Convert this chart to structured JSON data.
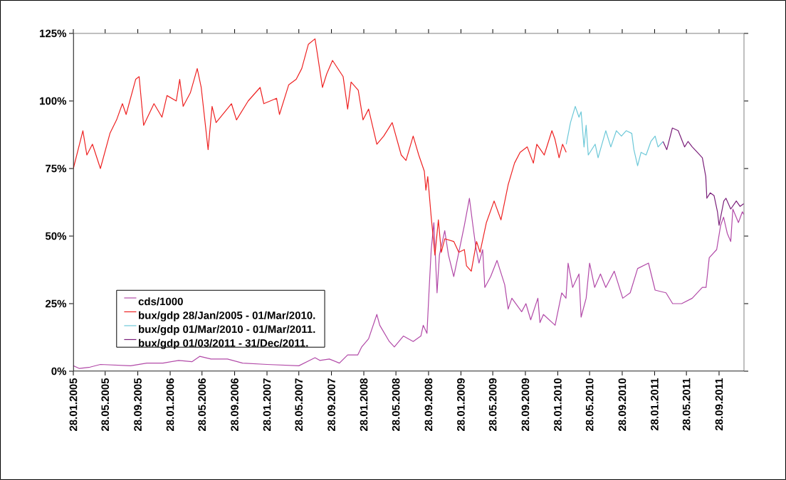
{
  "chart_data": {
    "type": "line",
    "xlim": [
      "2005-01-28",
      "2011-12-31"
    ],
    "ylim": [
      0,
      125
    ],
    "xticks": [
      {
        "value": "2005-01-28",
        "label": "28.01.2005"
      },
      {
        "value": "2005-05-28",
        "label": "28.05.2005"
      },
      {
        "value": "2005-09-28",
        "label": "28.09.2005"
      },
      {
        "value": "2006-01-28",
        "label": "28.01.2006"
      },
      {
        "value": "2006-05-28",
        "label": "28.05.2006"
      },
      {
        "value": "2006-09-28",
        "label": "28.09.2006"
      },
      {
        "value": "2007-01-28",
        "label": "28.01.2007"
      },
      {
        "value": "2007-05-28",
        "label": "28.05.2007"
      },
      {
        "value": "2007-09-28",
        "label": "28.09.2007"
      },
      {
        "value": "2008-01-28",
        "label": "28.01.2008"
      },
      {
        "value": "2008-05-28",
        "label": "28.05.2008"
      },
      {
        "value": "2008-09-28",
        "label": "28.09.2008"
      },
      {
        "value": "2009-01-28",
        "label": "28.01.2009"
      },
      {
        "value": "2009-05-28",
        "label": "28.05.2009"
      },
      {
        "value": "2009-09-28",
        "label": "28.09.2009"
      },
      {
        "value": "2010-01-28",
        "label": "28.01.2010"
      },
      {
        "value": "2010-05-28",
        "label": "28.05.2010"
      },
      {
        "value": "2010-09-28",
        "label": "28.09.2010"
      },
      {
        "value": "2011-01-28",
        "label": "28.01.2011"
      },
      {
        "value": "2011-05-28",
        "label": "28.05.2011"
      },
      {
        "value": "2011-09-28",
        "label": "28.09.2011"
      }
    ],
    "yticks": [
      {
        "value": 0,
        "label": "0%"
      },
      {
        "value": 25,
        "label": "25%"
      },
      {
        "value": 50,
        "label": "50%"
      },
      {
        "value": 75,
        "label": "75%"
      },
      {
        "value": 100,
        "label": "100%"
      },
      {
        "value": 125,
        "label": "125%"
      }
    ],
    "legend": "center left",
    "series": [
      {
        "name": "cds/1000",
        "color": "#b24aa8",
        "x": [
          "2005-01-28",
          "2005-02-20",
          "2005-04-01",
          "2005-05-10",
          "2005-09-01",
          "2005-11-01",
          "2006-01-01",
          "2006-03-01",
          "2006-04-20",
          "2006-05-20",
          "2006-07-01",
          "2006-09-01",
          "2006-10-28",
          "2007-01-28",
          "2007-05-28",
          "2007-07-28",
          "2007-08-15",
          "2007-09-20",
          "2007-10-28",
          "2007-11-28",
          "2008-01-05",
          "2008-01-20",
          "2008-02-15",
          "2008-03-17",
          "2008-03-28",
          "2008-05-03",
          "2008-05-22",
          "2008-06-25",
          "2008-08-01",
          "2008-08-30",
          "2008-09-08",
          "2008-09-22",
          "2008-09-30",
          "2008-10-08",
          "2008-10-18",
          "2008-10-30",
          "2008-11-08",
          "2008-11-28",
          "2008-12-12",
          "2009-01-01",
          "2009-01-20",
          "2009-02-10",
          "2009-03-01",
          "2009-03-14",
          "2009-03-25",
          "2009-04-06",
          "2009-04-20",
          "2009-04-28",
          "2009-05-20",
          "2009-06-13",
          "2009-07-12",
          "2009-07-25",
          "2009-08-08",
          "2009-09-14",
          "2009-09-30",
          "2009-10-18",
          "2009-11-14",
          "2009-11-22",
          "2009-12-05",
          "2010-01-18",
          "2010-02-12",
          "2010-02-28",
          "2010-03-08",
          "2010-03-25",
          "2010-04-18",
          "2010-04-26",
          "2010-05-15",
          "2010-05-28",
          "2010-06-16",
          "2010-07-08",
          "2010-07-28",
          "2010-08-29",
          "2010-09-30",
          "2010-10-28",
          "2010-11-25",
          "2011-01-05",
          "2011-01-30",
          "2011-03-12",
          "2011-04-06",
          "2011-05-10",
          "2011-06-19",
          "2011-07-27",
          "2011-08-10",
          "2011-08-22",
          "2011-09-19",
          "2011-10-04",
          "2011-10-15",
          "2011-10-29",
          "2011-11-11",
          "2011-11-19",
          "2011-12-10",
          "2011-12-25",
          "2011-12-30"
        ],
        "values": [
          2,
          1,
          1.5,
          2.5,
          2,
          3,
          3,
          4,
          3.5,
          5.5,
          4.5,
          4.5,
          3,
          2.5,
          2,
          5,
          4,
          4.5,
          3,
          6,
          6,
          9,
          12,
          21,
          17,
          11,
          9,
          13,
          11,
          13,
          17,
          14,
          30,
          45,
          55,
          29,
          43,
          52,
          43,
          35,
          44,
          54,
          64,
          54,
          46,
          40,
          45,
          31,
          35,
          41,
          32,
          23,
          27,
          22,
          25,
          19,
          27,
          18,
          21,
          17,
          29,
          27,
          40,
          31,
          36,
          20,
          27,
          40,
          31,
          36,
          31,
          37,
          27,
          29,
          38,
          40,
          30,
          29,
          25,
          25,
          27,
          31,
          31,
          42,
          45,
          54,
          57,
          51,
          48,
          60,
          55,
          59,
          58
        ]
      },
      {
        "name": "bux/gdp 28/Jan/2005 - 01/Mar/2010.",
        "color": "#ee2222",
        "x": [
          "2005-01-28",
          "2005-03-05",
          "2005-03-20",
          "2005-04-10",
          "2005-05-10",
          "2005-06-15",
          "2005-07-10",
          "2005-08-01",
          "2005-08-15",
          "2005-09-20",
          "2005-10-03",
          "2005-10-20",
          "2005-11-28",
          "2005-12-28",
          "2006-01-16",
          "2006-02-20",
          "2006-03-05",
          "2006-03-18",
          "2006-04-14",
          "2006-05-10",
          "2006-05-25",
          "2006-06-20",
          "2006-07-05",
          "2006-07-20",
          "2006-09-16",
          "2006-10-05",
          "2006-11-18",
          "2007-01-02",
          "2007-01-16",
          "2007-03-05",
          "2007-03-16",
          "2007-04-20",
          "2007-05-18",
          "2007-06-08",
          "2007-07-03",
          "2007-07-28",
          "2007-08-05",
          "2007-08-25",
          "2007-09-10",
          "2007-10-02",
          "2007-11-11",
          "2007-11-28",
          "2007-12-11",
          "2008-01-07",
          "2008-01-25",
          "2008-02-15",
          "2008-03-17",
          "2008-04-12",
          "2008-05-14",
          "2008-06-17",
          "2008-07-05",
          "2008-08-01",
          "2008-08-22",
          "2008-09-12",
          "2008-09-18",
          "2008-09-25",
          "2008-10-08",
          "2008-10-22",
          "2008-11-04",
          "2008-11-15",
          "2008-11-28",
          "2009-01-01",
          "2009-01-20",
          "2009-02-10",
          "2009-02-18",
          "2009-03-08",
          "2009-03-28",
          "2009-04-10",
          "2009-05-04",
          "2009-06-02",
          "2009-06-28",
          "2009-07-25",
          "2009-08-18",
          "2009-09-08",
          "2009-10-05",
          "2009-10-28",
          "2009-11-10",
          "2009-12-08",
          "2010-01-06",
          "2010-01-17",
          "2010-02-02",
          "2010-02-15",
          "2010-03-01"
        ],
        "values": [
          75,
          89,
          80,
          84,
          75,
          88,
          93,
          99,
          95,
          108,
          109,
          91,
          99,
          94,
          102,
          100,
          108,
          98,
          103,
          112,
          105,
          82,
          98,
          92,
          99,
          93,
          100,
          105,
          99,
          101,
          95,
          106,
          108,
          112,
          121,
          123,
          118,
          105,
          110,
          115,
          109,
          97,
          107,
          104,
          93,
          97,
          84,
          87,
          92,
          80,
          78,
          87,
          80,
          74,
          67,
          72,
          57,
          43,
          56,
          44,
          49,
          48,
          44,
          45,
          39,
          37,
          48,
          44,
          55,
          63,
          56,
          69,
          77,
          81,
          83,
          77,
          84,
          80,
          89,
          86,
          79,
          84,
          81
        ]
      },
      {
        "name": "bux/gdp 01/Mar/2010 - 01/Mar/2011.",
        "color": "#6cc8d8",
        "x": [
          "2010-03-01",
          "2010-03-17",
          "2010-04-04",
          "2010-04-18",
          "2010-04-26",
          "2010-05-07",
          "2010-05-15",
          "2010-05-23",
          "2010-06-18",
          "2010-06-29",
          "2010-07-28",
          "2010-08-16",
          "2010-09-06",
          "2010-09-25",
          "2010-10-13",
          "2010-11-03",
          "2010-11-11",
          "2010-11-25",
          "2010-12-08",
          "2010-12-27",
          "2011-01-14",
          "2011-01-30",
          "2011-02-10",
          "2011-03-01"
        ],
        "values": [
          84,
          92,
          98,
          94,
          96,
          83,
          91,
          80,
          84,
          79,
          89,
          83,
          89,
          87,
          89,
          88,
          82,
          76,
          81,
          80,
          85,
          87,
          83,
          85
        ]
      },
      {
        "name": "bux/gdp 01/03/2011 - 31/Dec/2011.",
        "color": "#7a1f7a",
        "x": [
          "2011-03-01",
          "2011-03-15",
          "2011-04-05",
          "2011-04-27",
          "2011-05-21",
          "2011-06-03",
          "2011-06-19",
          "2011-07-08",
          "2011-07-27",
          "2011-08-09",
          "2011-08-13",
          "2011-08-26",
          "2011-09-09",
          "2011-09-22",
          "2011-09-28",
          "2011-10-16",
          "2011-10-24",
          "2011-11-11",
          "2011-12-02",
          "2011-12-16",
          "2011-12-30"
        ],
        "values": [
          85,
          82,
          90,
          89,
          83,
          85,
          83,
          81,
          79,
          72,
          64,
          66,
          65,
          59,
          54,
          63,
          64,
          60,
          63,
          61,
          62
        ]
      }
    ]
  }
}
